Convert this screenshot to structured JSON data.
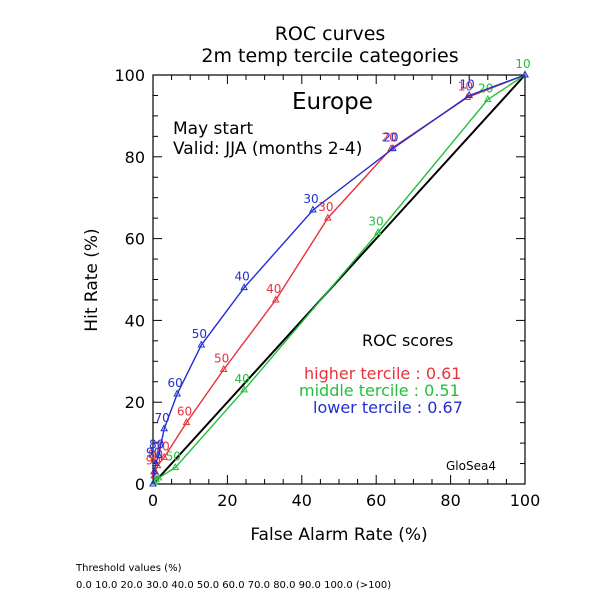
{
  "chart_data": {
    "type": "line",
    "title": "ROC curves",
    "subtitle": "2m temp tercile categories",
    "region": "Europe",
    "start": "May start",
    "valid": "Valid: JJA (months 2-4)",
    "xlabel": "False Alarm Rate (%)",
    "ylabel": "Hit Rate (%)",
    "xlim": [
      0,
      100
    ],
    "ylim": [
      0,
      100
    ],
    "xticks": [
      "0",
      "20",
      "40",
      "60",
      "80",
      "100"
    ],
    "yticks": [
      "0",
      "20",
      "40",
      "60",
      "80",
      "100"
    ],
    "grid": false,
    "model": "GloSea4",
    "scores_title": "ROC scores",
    "diagonal_color": "#000000",
    "series": [
      {
        "name": "higher tercile",
        "color": "#e8323c",
        "score_label": "higher tercile : 0.61",
        "x": [
          100,
          84.5,
          64,
          47,
          33,
          19,
          9,
          3,
          1.2,
          0.6,
          0.3,
          0
        ],
        "y": [
          100,
          94.5,
          82,
          65,
          45,
          28,
          15,
          6.5,
          4.5,
          3,
          2,
          0
        ],
        "labels": [
          "",
          "10",
          "20",
          "30",
          "40",
          "50",
          "60",
          "70",
          "80",
          "90",
          "",
          ""
        ]
      },
      {
        "name": "middle tercile",
        "color": "#22c03a",
        "score_label": "middle tercile : 0.51",
        "x": [
          100,
          90,
          60.5,
          24.5,
          6,
          1.5,
          0.8,
          0.3,
          0
        ],
        "y": [
          100,
          94,
          61.5,
          23,
          4,
          1.5,
          1,
          0.5,
          0
        ],
        "labels": [
          "10",
          "20",
          "30",
          "40",
          "50",
          "",
          "",
          "",
          ""
        ]
      },
      {
        "name": "lower tercile",
        "color": "#2030d0",
        "score_label": "lower tercile : 0.67",
        "x": [
          100,
          85,
          64.5,
          43,
          24.5,
          13,
          6.5,
          3,
          1.5,
          0.7,
          0.3,
          0
        ],
        "y": [
          100,
          95,
          82,
          67,
          48,
          34,
          22,
          13.5,
          7,
          5,
          3,
          0
        ],
        "labels": [
          "",
          "10",
          "20",
          "30",
          "40",
          "50",
          "60",
          "70",
          "80",
          "90",
          "",
          ""
        ]
      }
    ]
  },
  "thresholds": {
    "title": "Threshold values (%)",
    "values": "0.0 10.0 20.0 30.0 40.0 50.0 60.0 70.0 80.0 90.0 100.0 (>100)"
  }
}
